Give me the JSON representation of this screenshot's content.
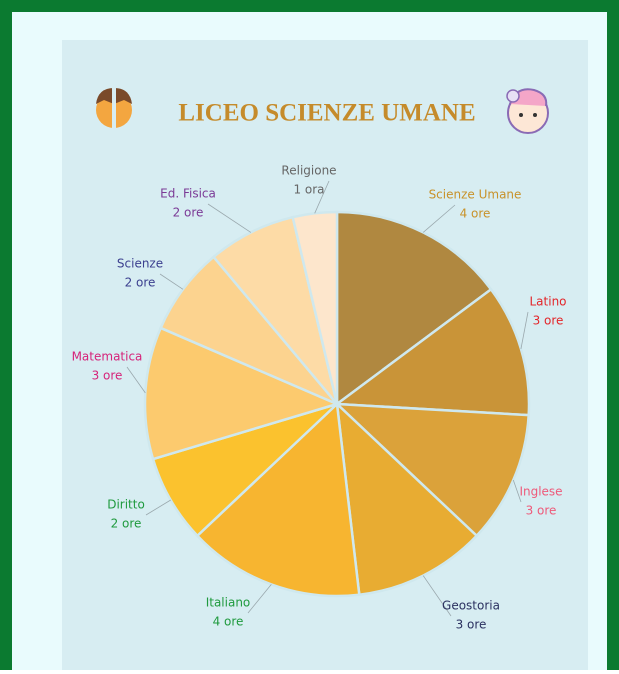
{
  "chart_data": {
    "type": "pie",
    "title": "LICEO SCIENZE UMANE",
    "categories": [
      "Scienze Umane",
      "Latino",
      "Inglese",
      "Geostoria",
      "Italiano",
      "Diritto",
      "Matematica",
      "Scienze",
      "Ed. Fisica",
      "Religione"
    ],
    "values": [
      4,
      3,
      3,
      3,
      4,
      2,
      3,
      2,
      2,
      1
    ],
    "value_labels": [
      "4 ore",
      "3 ore",
      "3 ore",
      "3 ore",
      "4 ore",
      "2 ore",
      "3 ore",
      "2 ore",
      "2 ore",
      "1 ora"
    ],
    "colors": [
      "#b08840",
      "#c99438",
      "#dba23a",
      "#e8ac32",
      "#f7b530",
      "#fbc22e",
      "#fcca6e",
      "#fcd38f",
      "#fddba6",
      "#fde6cc"
    ],
    "label_colors": [
      "#c8922a",
      "#e3262a",
      "#ee5a7a",
      "#2b3160",
      "#1f9a3e",
      "#1f9a3e",
      "#d6237a",
      "#3b3f8f",
      "#7b3a96",
      "#666666"
    ]
  }
}
